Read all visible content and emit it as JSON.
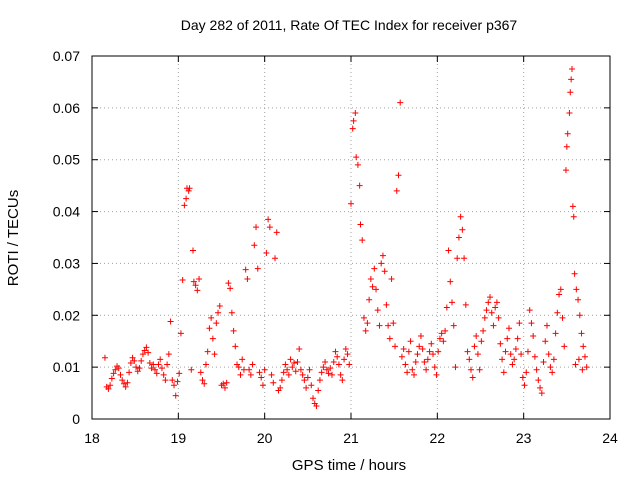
{
  "chart_data": {
    "type": "scatter",
    "title": "Day 282 of 2011, Rate Of TEC Index for receiver p367",
    "xlabel": "GPS time / hours",
    "ylabel": "ROTI / TECUs",
    "xlim": [
      18,
      24
    ],
    "ylim": [
      0,
      0.07
    ],
    "xticks": [
      18,
      19,
      20,
      21,
      22,
      23,
      24
    ],
    "xtick_labels": [
      "18",
      "19",
      "20",
      "21",
      "22",
      "23",
      "24"
    ],
    "yticks": [
      0,
      0.01,
      0.02,
      0.03,
      0.04,
      0.05,
      0.06,
      0.07
    ],
    "ytick_labels": [
      "0",
      "0.01",
      "0.02",
      "0.03",
      "0.04",
      "0.05",
      "0.06",
      "0.07"
    ],
    "grid": true,
    "marker": "plus",
    "color": "#ff0000",
    "series": [
      {
        "name": "ROTI",
        "points": [
          [
            18.15,
            0.0118
          ],
          [
            18.17,
            0.0062
          ],
          [
            18.19,
            0.0058
          ],
          [
            18.21,
            0.0065
          ],
          [
            18.23,
            0.0078
          ],
          [
            18.25,
            0.0088
          ],
          [
            18.27,
            0.0095
          ],
          [
            18.29,
            0.0102
          ],
          [
            18.31,
            0.0098
          ],
          [
            18.33,
            0.0085
          ],
          [
            18.35,
            0.0075
          ],
          [
            18.37,
            0.0068
          ],
          [
            18.39,
            0.0062
          ],
          [
            18.41,
            0.007
          ],
          [
            18.43,
            0.009
          ],
          [
            18.45,
            0.0108
          ],
          [
            18.47,
            0.0118
          ],
          [
            18.49,
            0.0112
          ],
          [
            18.51,
            0.01
          ],
          [
            18.53,
            0.0092
          ],
          [
            18.55,
            0.0098
          ],
          [
            18.57,
            0.0112
          ],
          [
            18.59,
            0.0125
          ],
          [
            18.61,
            0.0132
          ],
          [
            18.63,
            0.0138
          ],
          [
            18.65,
            0.0128
          ],
          [
            18.67,
            0.0108
          ],
          [
            18.69,
            0.0098
          ],
          [
            18.71,
            0.0105
          ],
          [
            18.73,
            0.0095
          ],
          [
            18.75,
            0.0088
          ],
          [
            18.77,
            0.0105
          ],
          [
            18.79,
            0.0115
          ],
          [
            18.81,
            0.0098
          ],
          [
            18.83,
            0.0085
          ],
          [
            18.85,
            0.0075
          ],
          [
            18.87,
            0.0105
          ],
          [
            18.89,
            0.0125
          ],
          [
            18.91,
            0.0188
          ],
          [
            18.93,
            0.0075
          ],
          [
            18.95,
            0.0065
          ],
          [
            18.97,
            0.0045
          ],
          [
            18.99,
            0.0072
          ],
          [
            19.01,
            0.0088
          ],
          [
            19.03,
            0.0165
          ],
          [
            19.05,
            0.0268
          ],
          [
            19.07,
            0.0412
          ],
          [
            19.09,
            0.0425
          ],
          [
            19.1,
            0.0445
          ],
          [
            19.12,
            0.044
          ],
          [
            19.13,
            0.0445
          ],
          [
            19.15,
            0.0095
          ],
          [
            19.17,
            0.0325
          ],
          [
            19.18,
            0.0265
          ],
          [
            19.2,
            0.0258
          ],
          [
            19.22,
            0.0248
          ],
          [
            19.24,
            0.027
          ],
          [
            19.26,
            0.009
          ],
          [
            19.28,
            0.0075
          ],
          [
            19.3,
            0.0068
          ],
          [
            19.32,
            0.0105
          ],
          [
            19.34,
            0.013
          ],
          [
            19.36,
            0.0175
          ],
          [
            19.38,
            0.0195
          ],
          [
            19.4,
            0.0155
          ],
          [
            19.42,
            0.0125
          ],
          [
            19.44,
            0.0185
          ],
          [
            19.46,
            0.0205
          ],
          [
            19.48,
            0.0218
          ],
          [
            19.5,
            0.0065
          ],
          [
            19.52,
            0.0068
          ],
          [
            19.54,
            0.006
          ],
          [
            19.56,
            0.007
          ],
          [
            19.58,
            0.0262
          ],
          [
            19.6,
            0.0252
          ],
          [
            19.62,
            0.0205
          ],
          [
            19.64,
            0.017
          ],
          [
            19.66,
            0.014
          ],
          [
            19.68,
            0.0105
          ],
          [
            19.7,
            0.01
          ],
          [
            19.72,
            0.0085
          ],
          [
            19.74,
            0.0115
          ],
          [
            19.76,
            0.0095
          ],
          [
            19.78,
            0.0288
          ],
          [
            19.8,
            0.027
          ],
          [
            19.82,
            0.0095
          ],
          [
            19.84,
            0.0085
          ],
          [
            19.86,
            0.0105
          ],
          [
            19.88,
            0.0335
          ],
          [
            19.9,
            0.037
          ],
          [
            19.92,
            0.029
          ],
          [
            19.94,
            0.009
          ],
          [
            19.96,
            0.008
          ],
          [
            19.98,
            0.0065
          ],
          [
            20.0,
            0.0095
          ],
          [
            20.02,
            0.032
          ],
          [
            20.04,
            0.0385
          ],
          [
            20.06,
            0.037
          ],
          [
            20.08,
            0.0085
          ],
          [
            20.1,
            0.007
          ],
          [
            20.12,
            0.031
          ],
          [
            20.14,
            0.036
          ],
          [
            20.16,
            0.0055
          ],
          [
            20.18,
            0.006
          ],
          [
            20.2,
            0.0075
          ],
          [
            20.22,
            0.009
          ],
          [
            20.24,
            0.0105
          ],
          [
            20.26,
            0.0095
          ],
          [
            20.28,
            0.0085
          ],
          [
            20.3,
            0.0115
          ],
          [
            20.32,
            0.01
          ],
          [
            20.34,
            0.0108
          ],
          [
            20.36,
            0.0092
          ],
          [
            20.38,
            0.011
          ],
          [
            20.4,
            0.0135
          ],
          [
            20.42,
            0.0095
          ],
          [
            20.44,
            0.0085
          ],
          [
            20.46,
            0.0075
          ],
          [
            20.48,
            0.006
          ],
          [
            20.5,
            0.008
          ],
          [
            20.52,
            0.0095
          ],
          [
            20.54,
            0.0065
          ],
          [
            20.56,
            0.004
          ],
          [
            20.58,
            0.003
          ],
          [
            20.6,
            0.0025
          ],
          [
            20.62,
            0.0055
          ],
          [
            20.64,
            0.0075
          ],
          [
            20.66,
            0.009
          ],
          [
            20.68,
            0.01
          ],
          [
            20.7,
            0.011
          ],
          [
            20.72,
            0.0095
          ],
          [
            20.74,
            0.0088
          ],
          [
            20.76,
            0.0098
          ],
          [
            20.78,
            0.0085
          ],
          [
            20.8,
            0.011
          ],
          [
            20.82,
            0.013
          ],
          [
            20.84,
            0.012
          ],
          [
            20.86,
            0.0105
          ],
          [
            20.88,
            0.0085
          ],
          [
            20.9,
            0.0075
          ],
          [
            20.92,
            0.0115
          ],
          [
            20.94,
            0.0135
          ],
          [
            20.96,
            0.0125
          ],
          [
            20.98,
            0.0105
          ],
          [
            21.0,
            0.0415
          ],
          [
            21.02,
            0.056
          ],
          [
            21.03,
            0.0575
          ],
          [
            21.05,
            0.059
          ],
          [
            21.06,
            0.0505
          ],
          [
            21.08,
            0.049
          ],
          [
            21.1,
            0.045
          ],
          [
            21.11,
            0.0375
          ],
          [
            21.13,
            0.0345
          ],
          [
            21.15,
            0.0195
          ],
          [
            21.17,
            0.017
          ],
          [
            21.19,
            0.0185
          ],
          [
            21.21,
            0.023
          ],
          [
            21.23,
            0.027
          ],
          [
            21.25,
            0.0255
          ],
          [
            21.27,
            0.029
          ],
          [
            21.29,
            0.025
          ],
          [
            21.31,
            0.021
          ],
          [
            21.33,
            0.018
          ],
          [
            21.35,
            0.03
          ],
          [
            21.37,
            0.0315
          ],
          [
            21.39,
            0.0285
          ],
          [
            21.41,
            0.022
          ],
          [
            21.43,
            0.018
          ],
          [
            21.45,
            0.0155
          ],
          [
            21.47,
            0.027
          ],
          [
            21.49,
            0.0185
          ],
          [
            21.51,
            0.014
          ],
          [
            21.53,
            0.044
          ],
          [
            21.55,
            0.047
          ],
          [
            21.57,
            0.061
          ],
          [
            21.59,
            0.012
          ],
          [
            21.61,
            0.0135
          ],
          [
            21.63,
            0.0105
          ],
          [
            21.65,
            0.009
          ],
          [
            21.67,
            0.013
          ],
          [
            21.69,
            0.015
          ],
          [
            21.71,
            0.0095
          ],
          [
            21.73,
            0.0085
          ],
          [
            21.75,
            0.011
          ],
          [
            21.77,
            0.0125
          ],
          [
            21.79,
            0.014
          ],
          [
            21.81,
            0.016
          ],
          [
            21.83,
            0.0135
          ],
          [
            21.85,
            0.011
          ],
          [
            21.87,
            0.0095
          ],
          [
            21.89,
            0.0115
          ],
          [
            21.91,
            0.013
          ],
          [
            21.93,
            0.0145
          ],
          [
            21.95,
            0.0125
          ],
          [
            21.97,
            0.01
          ],
          [
            21.99,
            0.0085
          ],
          [
            22.01,
            0.013
          ],
          [
            22.03,
            0.0155
          ],
          [
            22.05,
            0.0165
          ],
          [
            22.07,
            0.015
          ],
          [
            22.09,
            0.017
          ],
          [
            22.11,
            0.0215
          ],
          [
            22.13,
            0.0325
          ],
          [
            22.15,
            0.0265
          ],
          [
            22.17,
            0.0225
          ],
          [
            22.19,
            0.018
          ],
          [
            22.21,
            0.01
          ],
          [
            22.23,
            0.031
          ],
          [
            22.25,
            0.035
          ],
          [
            22.27,
            0.039
          ],
          [
            22.29,
            0.0365
          ],
          [
            22.31,
            0.031
          ],
          [
            22.33,
            0.022
          ],
          [
            22.35,
            0.013
          ],
          [
            22.37,
            0.0115
          ],
          [
            22.39,
            0.0095
          ],
          [
            22.41,
            0.008
          ],
          [
            22.43,
            0.014
          ],
          [
            22.45,
            0.016
          ],
          [
            22.47,
            0.0125
          ],
          [
            22.49,
            0.0095
          ],
          [
            22.51,
            0.015
          ],
          [
            22.53,
            0.017
          ],
          [
            22.55,
            0.0195
          ],
          [
            22.57,
            0.021
          ],
          [
            22.59,
            0.0225
          ],
          [
            22.61,
            0.0235
          ],
          [
            22.63,
            0.0205
          ],
          [
            22.65,
            0.018
          ],
          [
            22.67,
            0.0215
          ],
          [
            22.69,
            0.0225
          ],
          [
            22.71,
            0.0195
          ],
          [
            22.73,
            0.0145
          ],
          [
            22.75,
            0.0115
          ],
          [
            22.77,
            0.009
          ],
          [
            22.79,
            0.013
          ],
          [
            22.81,
            0.0155
          ],
          [
            22.83,
            0.0175
          ],
          [
            22.85,
            0.0125
          ],
          [
            22.87,
            0.0105
          ],
          [
            22.89,
            0.0115
          ],
          [
            22.91,
            0.0135
          ],
          [
            22.93,
            0.0155
          ],
          [
            22.95,
            0.0185
          ],
          [
            22.97,
            0.0125
          ],
          [
            22.99,
            0.008
          ],
          [
            23.01,
            0.0065
          ],
          [
            23.03,
            0.009
          ],
          [
            23.05,
            0.013
          ],
          [
            23.07,
            0.021
          ],
          [
            23.09,
            0.0185
          ],
          [
            23.11,
            0.016
          ],
          [
            23.13,
            0.012
          ],
          [
            23.15,
            0.0095
          ],
          [
            23.17,
            0.0075
          ],
          [
            23.19,
            0.006
          ],
          [
            23.21,
            0.005
          ],
          [
            23.23,
            0.011
          ],
          [
            23.25,
            0.015
          ],
          [
            23.27,
            0.018
          ],
          [
            23.29,
            0.0125
          ],
          [
            23.31,
            0.01
          ],
          [
            23.33,
            0.009
          ],
          [
            23.35,
            0.0115
          ],
          [
            23.37,
            0.0165
          ],
          [
            23.39,
            0.0205
          ],
          [
            23.41,
            0.024
          ],
          [
            23.43,
            0.025
          ],
          [
            23.45,
            0.0195
          ],
          [
            23.47,
            0.014
          ],
          [
            23.49,
            0.048
          ],
          [
            23.5,
            0.0525
          ],
          [
            23.51,
            0.055
          ],
          [
            23.53,
            0.059
          ],
          [
            23.54,
            0.063
          ],
          [
            23.55,
            0.0655
          ],
          [
            23.56,
            0.0675
          ],
          [
            23.57,
            0.041
          ],
          [
            23.58,
            0.039
          ],
          [
            23.59,
            0.028
          ],
          [
            23.61,
            0.025
          ],
          [
            23.63,
            0.023
          ],
          [
            23.65,
            0.02
          ],
          [
            23.67,
            0.0165
          ],
          [
            23.69,
            0.014
          ],
          [
            23.71,
            0.012
          ],
          [
            23.73,
            0.01
          ],
          [
            23.6,
            0.0105
          ],
          [
            23.64,
            0.0115
          ],
          [
            23.68,
            0.0095
          ]
        ]
      }
    ]
  }
}
